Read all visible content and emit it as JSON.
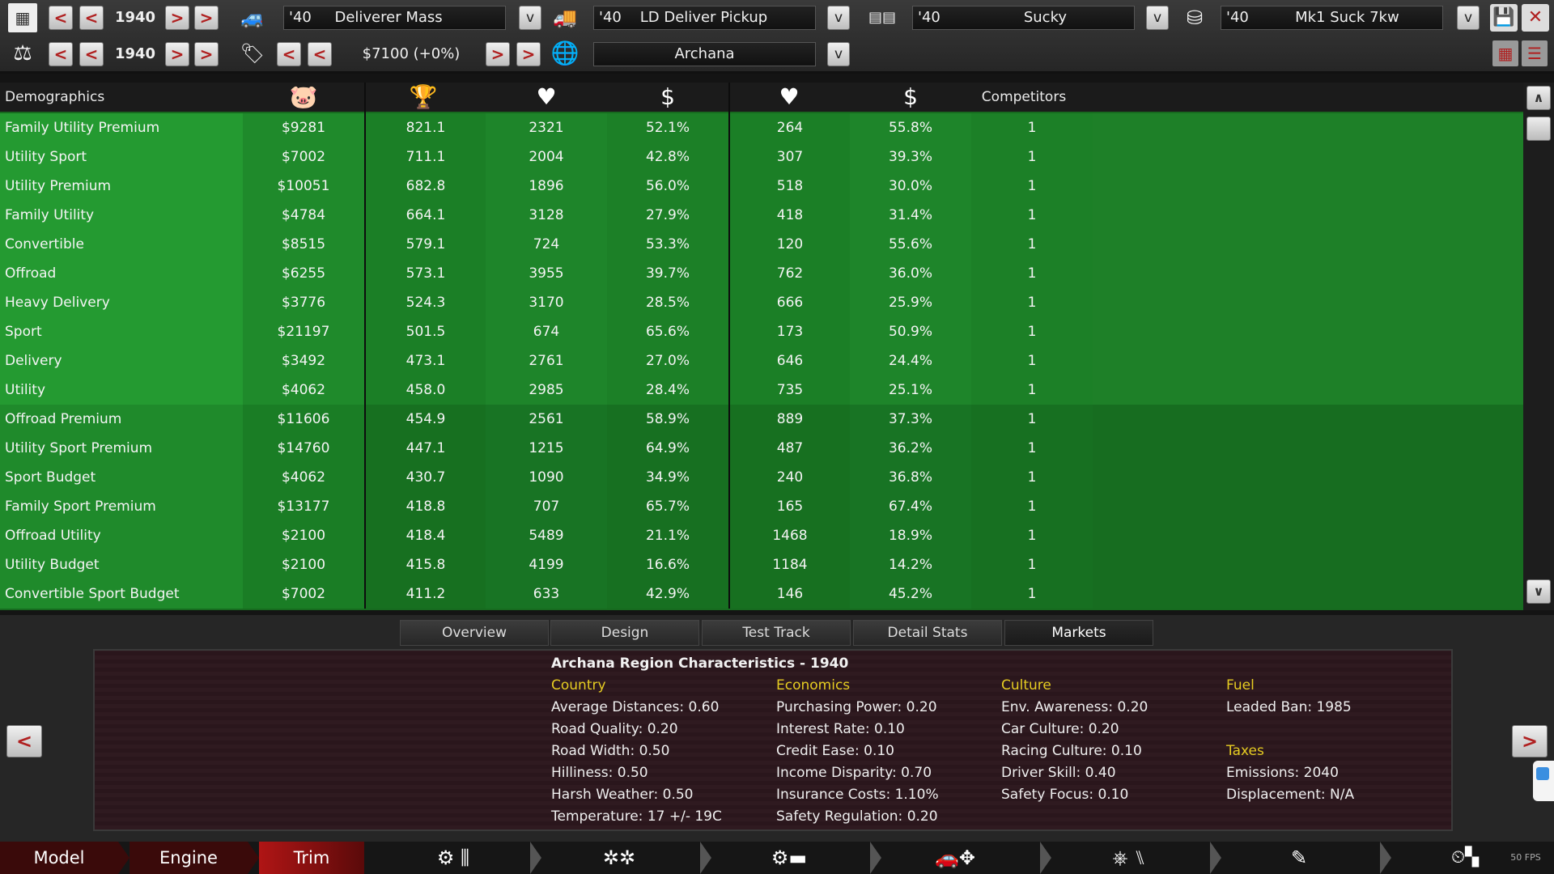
{
  "toolbar": {
    "model_year": "1940",
    "trim_year": "1940",
    "price": "$7100 (+0%)",
    "model_name": "'40     Deliverer Mass",
    "trim_name": "'40    LD Deliver Pickup",
    "engine_name": "'40                  Sucky",
    "engine_variant": "'40          Mk1 Suck 7kw",
    "region": "Archana",
    "dropdown_glyph": "v",
    "prev_glyph": "<",
    "next_glyph": ">"
  },
  "table": {
    "headers": {
      "demographics": "Demographics",
      "competitors": "Competitors"
    },
    "header_icons": [
      "piggy-bank-icon",
      "trophy-icon",
      "heart-icon",
      "dollar-icon",
      "heart-icon",
      "dollar-icon"
    ],
    "rows": [
      {
        "name": "Family Utility Premium",
        "wealth": "$9281",
        "score": "821.1",
        "pop": "2321",
        "afford": "52.1%",
        "pop2": "264",
        "afford2": "55.8%",
        "comp": "1"
      },
      {
        "name": "Utility Sport",
        "wealth": "$7002",
        "score": "711.1",
        "pop": "2004",
        "afford": "42.8%",
        "pop2": "307",
        "afford2": "39.3%",
        "comp": "1"
      },
      {
        "name": "Utility Premium",
        "wealth": "$10051",
        "score": "682.8",
        "pop": "1896",
        "afford": "56.0%",
        "pop2": "518",
        "afford2": "30.0%",
        "comp": "1"
      },
      {
        "name": "Family Utility",
        "wealth": "$4784",
        "score": "664.1",
        "pop": "3128",
        "afford": "27.9%",
        "pop2": "418",
        "afford2": "31.4%",
        "comp": "1"
      },
      {
        "name": "Convertible",
        "wealth": "$8515",
        "score": "579.1",
        "pop": "724",
        "afford": "53.3%",
        "pop2": "120",
        "afford2": "55.6%",
        "comp": "1"
      },
      {
        "name": "Offroad",
        "wealth": "$6255",
        "score": "573.1",
        "pop": "3955",
        "afford": "39.7%",
        "pop2": "762",
        "afford2": "36.0%",
        "comp": "1"
      },
      {
        "name": "Heavy Delivery",
        "wealth": "$3776",
        "score": "524.3",
        "pop": "3170",
        "afford": "28.5%",
        "pop2": "666",
        "afford2": "25.9%",
        "comp": "1"
      },
      {
        "name": "Sport",
        "wealth": "$21197",
        "score": "501.5",
        "pop": "674",
        "afford": "65.6%",
        "pop2": "173",
        "afford2": "50.9%",
        "comp": "1"
      },
      {
        "name": "Delivery",
        "wealth": "$3492",
        "score": "473.1",
        "pop": "2761",
        "afford": "27.0%",
        "pop2": "646",
        "afford2": "24.4%",
        "comp": "1"
      },
      {
        "name": "Utility",
        "wealth": "$4062",
        "score": "458.0",
        "pop": "2985",
        "afford": "28.4%",
        "pop2": "735",
        "afford2": "25.1%",
        "comp": "1"
      },
      {
        "name": "Offroad Premium",
        "wealth": "$11606",
        "score": "454.9",
        "pop": "2561",
        "afford": "58.9%",
        "pop2": "889",
        "afford2": "37.3%",
        "comp": "1"
      },
      {
        "name": "Utility Sport Premium",
        "wealth": "$14760",
        "score": "447.1",
        "pop": "1215",
        "afford": "64.9%",
        "pop2": "487",
        "afford2": "36.2%",
        "comp": "1"
      },
      {
        "name": "Sport Budget",
        "wealth": "$4062",
        "score": "430.7",
        "pop": "1090",
        "afford": "34.9%",
        "pop2": "240",
        "afford2": "36.8%",
        "comp": "1"
      },
      {
        "name": "Family Sport Premium",
        "wealth": "$13177",
        "score": "418.8",
        "pop": "707",
        "afford": "65.7%",
        "pop2": "165",
        "afford2": "67.4%",
        "comp": "1"
      },
      {
        "name": "Offroad Utility",
        "wealth": "$2100",
        "score": "418.4",
        "pop": "5489",
        "afford": "21.1%",
        "pop2": "1468",
        "afford2": "18.9%",
        "comp": "1"
      },
      {
        "name": "Utility Budget",
        "wealth": "$2100",
        "score": "415.8",
        "pop": "4199",
        "afford": "16.6%",
        "pop2": "1184",
        "afford2": "14.2%",
        "comp": "1"
      },
      {
        "name": "Convertible Sport Budget",
        "wealth": "$7002",
        "score": "411.2",
        "pop": "633",
        "afford": "42.9%",
        "pop2": "146",
        "afford2": "45.2%",
        "comp": "1"
      }
    ]
  },
  "tabs": [
    "Overview",
    "Design",
    "Test Track",
    "Detail Stats",
    "Markets"
  ],
  "active_tab": "Markets",
  "region_panel": {
    "title": "Archana Region Characteristics - 1940",
    "country": {
      "heading": "Country",
      "lines": [
        "Average Distances: 0.60",
        "Road Quality: 0.20",
        "Road Width: 0.50",
        "Hilliness: 0.50",
        "Harsh Weather: 0.50",
        "Temperature: 17 +/- 19C"
      ]
    },
    "economics": {
      "heading": "Economics",
      "lines": [
        "Purchasing Power: 0.20",
        "Interest Rate: 0.10",
        "Credit Ease: 0.10",
        "Income Disparity: 0.70",
        "Insurance Costs: 1.10%",
        "Safety Regulation: 0.20"
      ]
    },
    "culture": {
      "heading": "Culture",
      "lines": [
        "Env. Awareness: 0.20",
        "Car Culture: 0.20",
        "Racing Culture: 0.10",
        "Driver Skill: 0.40",
        "Safety Focus: 0.10"
      ]
    },
    "fuel": {
      "heading": "Fuel",
      "lines": [
        "Leaded Ban: 1985"
      ]
    },
    "taxes": {
      "heading": "Taxes",
      "lines": [
        "Emissions: 2040",
        "Displacement: N/A"
      ]
    }
  },
  "bottom_nav": {
    "model": "Model",
    "engine": "Engine",
    "trim": "Trim",
    "fps": "50 FPS"
  },
  "colors": {
    "table_bg": "#176a1f",
    "accent_red": "#b02020",
    "heading_yellow": "#e6cc22"
  }
}
